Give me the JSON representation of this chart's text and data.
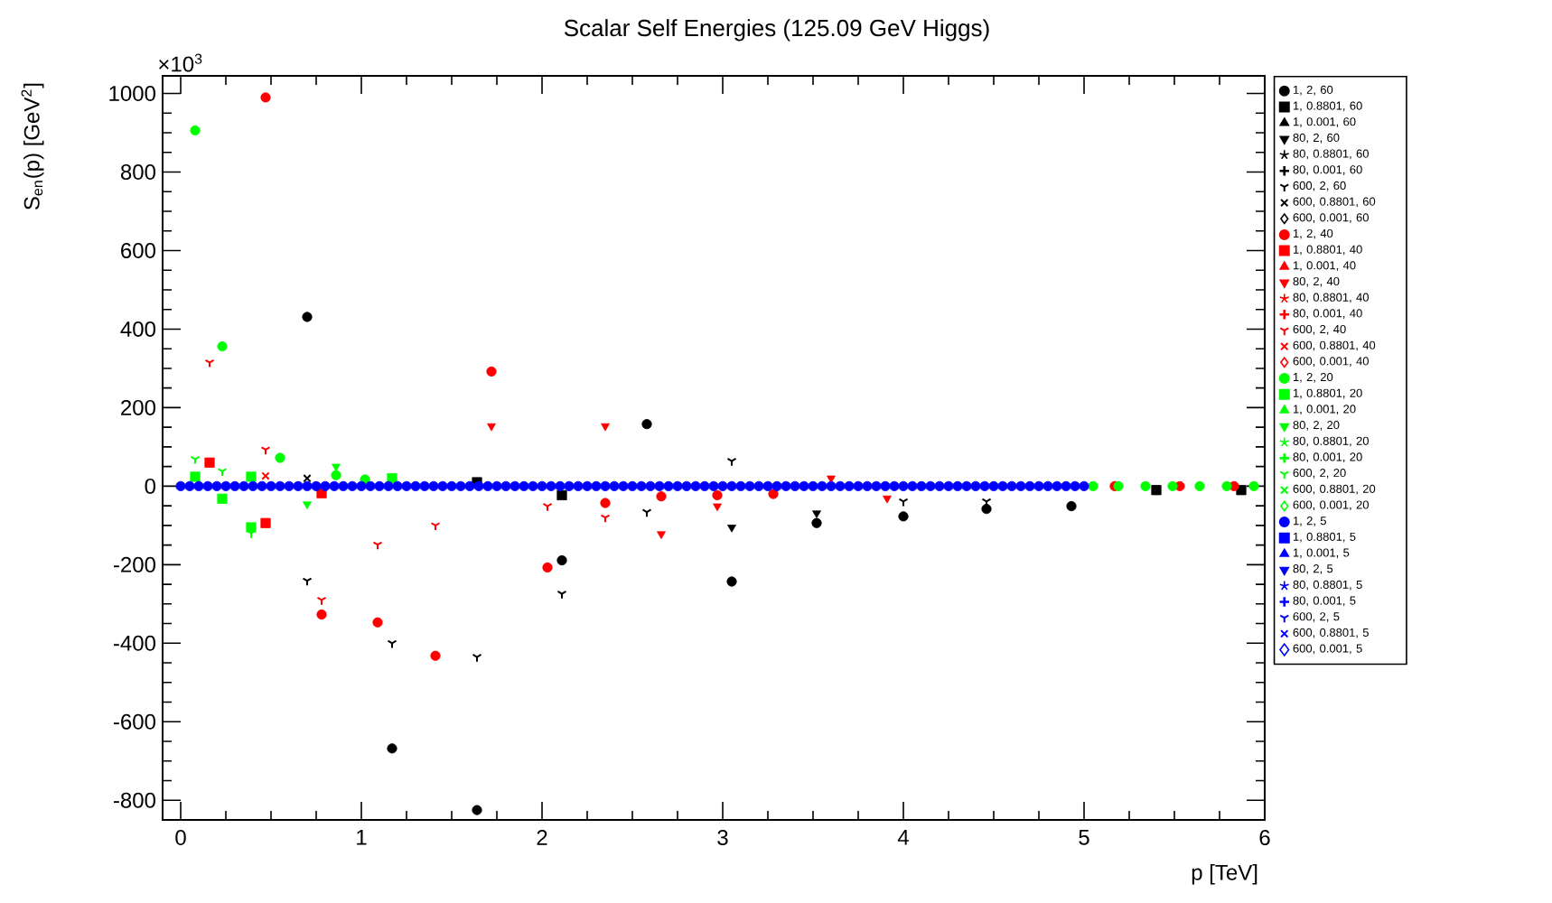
{
  "chart_data": {
    "type": "scatter",
    "title": "Scalar Self Energies (125.09 GeV Higgs)",
    "xlabel": "p [TeV]",
    "ylabel": "S$_{en}$(p) [GeV$^{2}$]",
    "annotations": [
      "×10$^{3}$"
    ],
    "xlim": [
      -0.1,
      6.0
    ],
    "ylim": [
      -850,
      1045
    ],
    "xticks": [
      0,
      1,
      2,
      3,
      4,
      5,
      6
    ],
    "yticks": [
      -800,
      -600,
      -400,
      -200,
      0,
      200,
      400,
      600,
      800,
      1000
    ],
    "legend": "right",
    "series": [
      {
        "name": "1, 2, 60",
        "color": "#000000",
        "marker": "circle",
        "x": [
          0.7,
          1.17,
          1.64,
          2.11,
          2.58,
          3.05,
          3.52,
          4.0,
          4.46,
          4.93
        ],
        "values": [
          431,
          -668,
          -825,
          -189,
          158,
          -243,
          -94,
          -77,
          -58,
          -51
        ]
      },
      {
        "name": "1, 0.8801, 60",
        "color": "#000000",
        "marker": "square",
        "x": [
          1.64,
          2.11,
          5.4,
          5.87
        ],
        "values": [
          10,
          -23,
          -10,
          -10
        ]
      },
      {
        "name": "1, 0.001, 60",
        "color": "#000000",
        "marker": "triangle"
      },
      {
        "name": "80, 2, 60",
        "color": "#000000",
        "marker": "triangle-down",
        "x": [
          3.05,
          3.52
        ],
        "values": [
          -105,
          -69
        ]
      },
      {
        "name": "80, 0.8801, 60",
        "color": "#000000",
        "marker": "star"
      },
      {
        "name": "80, 0.001, 60",
        "color": "#000000",
        "marker": "plus"
      },
      {
        "name": "600, 2, 60",
        "color": "#000000",
        "marker": "cross",
        "x": [
          0.7,
          1.17,
          1.64,
          2.11,
          2.58,
          3.05,
          4.0,
          4.46
        ],
        "values": [
          -241,
          -400,
          -435,
          -274,
          -66,
          64,
          -39,
          -39
        ]
      },
      {
        "name": "600, 0.8801, 60",
        "color": "#000000",
        "marker": "x",
        "x": [
          0.7
        ],
        "values": [
          20
        ]
      },
      {
        "name": "600, 0.001, 60",
        "color": "#000000",
        "marker": "diamond"
      },
      {
        "name": "1, 2, 40",
        "color": "#ff0000",
        "marker": "circle",
        "x": [
          0.47,
          0.78,
          1.09,
          1.41,
          1.72,
          2.03,
          2.35,
          2.66,
          2.97,
          3.28,
          5.17,
          5.53,
          5.83
        ],
        "values": [
          990,
          -327,
          -347,
          -432,
          292,
          -207,
          -43,
          -26,
          -23,
          -20,
          0,
          0,
          0
        ]
      },
      {
        "name": "1, 0.8801, 40",
        "color": "#ff0000",
        "marker": "square",
        "x": [
          0.16,
          0.47,
          0.78
        ],
        "values": [
          60,
          -94,
          -18
        ]
      },
      {
        "name": "1, 0.001, 40",
        "color": "#ff0000",
        "marker": "triangle"
      },
      {
        "name": "80, 2, 40",
        "color": "#ff0000",
        "marker": "triangle-down",
        "x": [
          1.72,
          2.35,
          2.66,
          2.97,
          3.6,
          3.91
        ],
        "values": [
          153,
          153,
          -122,
          -51,
          20,
          -31
        ]
      },
      {
        "name": "80, 0.8801, 40",
        "color": "#ff0000",
        "marker": "star"
      },
      {
        "name": "80, 0.001, 40",
        "color": "#ff0000",
        "marker": "plus"
      },
      {
        "name": "600, 2, 40",
        "color": "#ff0000",
        "marker": "cross",
        "x": [
          0.16,
          0.47,
          0.78,
          1.09,
          1.41,
          2.03,
          2.35
        ],
        "values": [
          315,
          93,
          -290,
          -149,
          -100,
          -51,
          -80
        ]
      },
      {
        "name": "600, 0.8801, 40",
        "color": "#ff0000",
        "marker": "x",
        "x": [
          0.47
        ],
        "values": [
          26
        ]
      },
      {
        "name": "600, 0.001, 40",
        "color": "#ff0000",
        "marker": "diamond"
      },
      {
        "name": "1, 2, 20",
        "color": "#00ff00",
        "marker": "circle",
        "x": [
          0.08,
          0.23,
          0.55,
          0.86,
          1.02,
          5.05,
          5.19,
          5.34,
          5.49,
          5.64,
          5.79,
          5.94
        ],
        "values": [
          906,
          356,
          72,
          28,
          17,
          0,
          0,
          0,
          0,
          0,
          0,
          0
        ]
      },
      {
        "name": "1, 0.8801, 20",
        "color": "#00ff00",
        "marker": "square",
        "x": [
          0.08,
          0.23,
          0.39,
          0.39,
          1.17
        ],
        "values": [
          24,
          -32,
          24,
          -105,
          20
        ]
      },
      {
        "name": "1, 0.001, 20",
        "color": "#00ff00",
        "marker": "triangle"
      },
      {
        "name": "80, 2, 20",
        "color": "#00ff00",
        "marker": "triangle-down",
        "x": [
          0.7,
          0.86
        ],
        "values": [
          -46,
          50
        ]
      },
      {
        "name": "80, 0.8801, 20",
        "color": "#00ff00",
        "marker": "star"
      },
      {
        "name": "80, 0.001, 20",
        "color": "#00ff00",
        "marker": "plus"
      },
      {
        "name": "600, 2, 20",
        "color": "#00ff00",
        "marker": "cross",
        "x": [
          0.08,
          0.23,
          0.39
        ],
        "values": [
          69,
          38,
          -120
        ]
      },
      {
        "name": "600, 0.8801, 20",
        "color": "#00ff00",
        "marker": "x"
      },
      {
        "name": "600, 0.001, 20",
        "color": "#00ff00",
        "marker": "diamond"
      },
      {
        "name": "1, 2, 5",
        "color": "#0000ff",
        "marker": "circle",
        "x": [
          0,
          0.05,
          0.1,
          0.15,
          0.2,
          0.25,
          0.3,
          0.35,
          0.4,
          0.45,
          0.5,
          0.55,
          0.6,
          0.65,
          0.7,
          0.75,
          0.8,
          0.85,
          0.9,
          0.95,
          1.0,
          1.05,
          1.1,
          1.15,
          1.2,
          1.25,
          1.3,
          1.35,
          1.4,
          1.45,
          1.5,
          1.55,
          1.6,
          1.65,
          1.7,
          1.75,
          1.8,
          1.85,
          1.9,
          1.95,
          2.0,
          2.05,
          2.1,
          2.15,
          2.2,
          2.25,
          2.3,
          2.35,
          2.4,
          2.45,
          2.5,
          2.55,
          2.6,
          2.65,
          2.7,
          2.75,
          2.8,
          2.85,
          2.9,
          2.95,
          3.0,
          3.05,
          3.1,
          3.15,
          3.2,
          3.25,
          3.3,
          3.35,
          3.4,
          3.45,
          3.5,
          3.55,
          3.6,
          3.65,
          3.7,
          3.75,
          3.8,
          3.85,
          3.9,
          3.95,
          4.0,
          4.05,
          4.1,
          4.15,
          4.2,
          4.25,
          4.3,
          4.35,
          4.4,
          4.45,
          4.5,
          4.55,
          4.6,
          4.65,
          4.7,
          4.75,
          4.8,
          4.85,
          4.9,
          4.95,
          5.0
        ],
        "values": [
          0,
          0,
          0,
          0,
          0,
          0,
          0,
          0,
          0,
          0,
          0,
          0,
          0,
          0,
          0,
          0,
          0,
          0,
          0,
          0,
          0,
          0,
          0,
          0,
          0,
          0,
          0,
          0,
          0,
          0,
          0,
          0,
          0,
          0,
          0,
          0,
          0,
          0,
          0,
          0,
          0,
          0,
          0,
          0,
          0,
          0,
          0,
          0,
          0,
          0,
          0,
          0,
          0,
          0,
          0,
          0,
          0,
          0,
          0,
          0,
          0,
          0,
          0,
          0,
          0,
          0,
          0,
          0,
          0,
          0,
          0,
          0,
          0,
          0,
          0,
          0,
          0,
          0,
          0,
          0,
          0,
          0,
          0,
          0,
          0,
          0,
          0,
          0,
          0,
          0,
          0,
          0,
          0,
          0,
          0,
          0,
          0,
          0,
          0,
          0,
          0
        ]
      },
      {
        "name": "1, 0.8801, 5",
        "color": "#0000ff",
        "marker": "square"
      },
      {
        "name": "1, 0.001, 5",
        "color": "#0000ff",
        "marker": "triangle"
      },
      {
        "name": "80, 2, 5",
        "color": "#0000ff",
        "marker": "triangle-down"
      },
      {
        "name": "80, 0.8801, 5",
        "color": "#0000ff",
        "marker": "star"
      },
      {
        "name": "80, 0.001, 5",
        "color": "#0000ff",
        "marker": "plus"
      },
      {
        "name": "600, 2, 5",
        "color": "#0000ff",
        "marker": "cross"
      },
      {
        "name": "600, 0.8801, 5",
        "color": "#0000ff",
        "marker": "x"
      },
      {
        "name": "600, 0.001, 5",
        "color": "#0000ff",
        "marker": "diamond"
      }
    ]
  }
}
